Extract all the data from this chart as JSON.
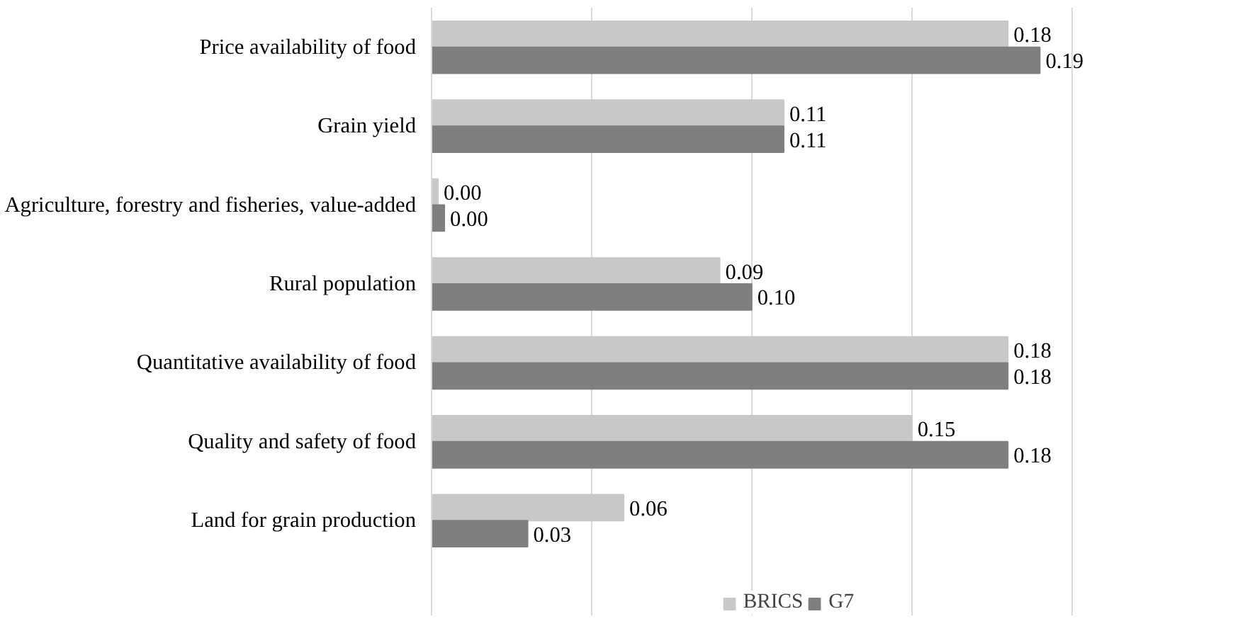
{
  "chart_data": {
    "type": "bar",
    "orientation": "horizontal",
    "categories": [
      "Price availability of food",
      "Grain yield",
      "Agriculture, forestry and fisheries, value-added",
      "Rural population",
      "Quantitative availability of food",
      "Quality and safety of food",
      "Land for grain production"
    ],
    "series": [
      {
        "name": "BRICS",
        "color": "#c8c8c8",
        "values": [
          0.18,
          0.11,
          0.002,
          0.09,
          0.18,
          0.15,
          0.06
        ],
        "value_labels": [
          "0.18",
          "0.11",
          "0.00",
          "0.09",
          "0.18",
          "0.15",
          "0.06"
        ]
      },
      {
        "name": "G7",
        "color": "#7f7f7f",
        "values": [
          0.19,
          0.11,
          0.004,
          0.1,
          0.18,
          0.18,
          0.03
        ],
        "value_labels": [
          "0.19",
          "0.11",
          "0.00",
          "0.10",
          "0.18",
          "0.18",
          "0.03"
        ]
      }
    ],
    "xticks": [
      {
        "value": 0,
        "label": null
      },
      {
        "value": 0.05,
        "label": null
      },
      {
        "value": 0.1,
        "label": null
      },
      {
        "value": 0.15,
        "label": null
      },
      {
        "value": 0.2,
        "label": null
      }
    ],
    "grid": "x",
    "legend": "bottom",
    "tick_labels": "y"
  }
}
